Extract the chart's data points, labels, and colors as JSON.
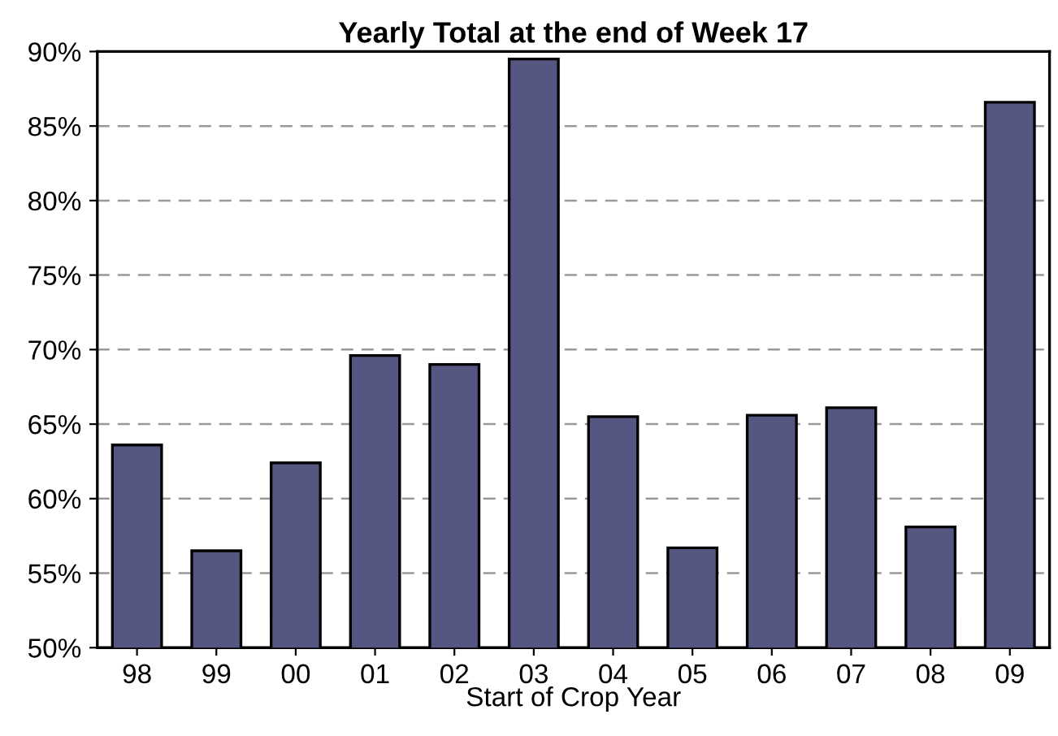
{
  "chart_data": {
    "type": "bar",
    "title": "Yearly Total at the end of Week 17",
    "xlabel": "Start of Crop Year",
    "categories": [
      "98",
      "99",
      "00",
      "01",
      "02",
      "03",
      "04",
      "05",
      "06",
      "07",
      "08",
      "09"
    ],
    "values": [
      63.6,
      56.5,
      62.4,
      69.6,
      69.0,
      89.5,
      65.5,
      56.7,
      65.6,
      66.1,
      58.1,
      86.6
    ],
    "color": "#555682",
    "ylim": [
      50,
      90
    ],
    "yticks": [
      {
        "value": 50,
        "label": "50%"
      },
      {
        "value": 55,
        "label": "55%"
      },
      {
        "value": 60,
        "label": "60%"
      },
      {
        "value": 65,
        "label": "65%"
      },
      {
        "value": 70,
        "label": "70%"
      },
      {
        "value": 75,
        "label": "75%"
      },
      {
        "value": 80,
        "label": "80%"
      },
      {
        "value": 85,
        "label": "85%"
      },
      {
        "value": 90,
        "label": "90%"
      }
    ],
    "grid": "y",
    "line_style": "dashed"
  }
}
